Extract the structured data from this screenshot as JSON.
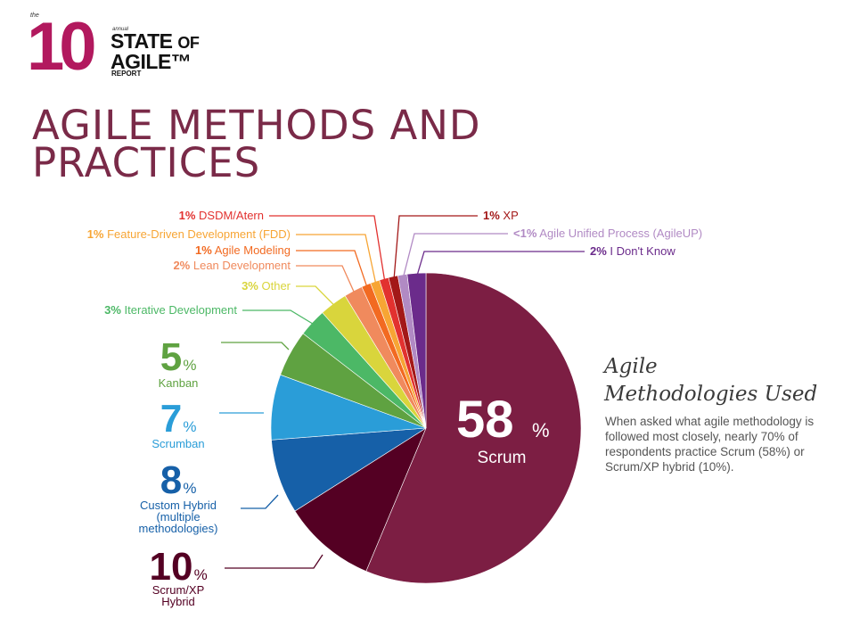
{
  "logo": {
    "the": "the",
    "number": "10",
    "annual": "annual",
    "line1": "STATE",
    "of": "OF",
    "line2": "AGILE™",
    "report": "REPORT"
  },
  "page_title": "AGILE METHODS AND PRACTICES",
  "side_panel": {
    "title_line1": "Agile",
    "title_line2": "Methodologies Used",
    "description": "When asked what agile methodology is followed most closely, nearly 70% of respondents practice Scrum (58%) or Scrum/XP hybrid (10%)."
  },
  "chart_data": {
    "type": "pie",
    "title": "",
    "unit": "%",
    "slices": [
      {
        "label": "Scrum",
        "value": 58,
        "display": "58",
        "color": "#7c1e43"
      },
      {
        "label": "Scrum/XP Hybrid",
        "value": 10,
        "display": "10",
        "color": "#540023"
      },
      {
        "label": "Custom Hybrid (multiple methodologies)",
        "value": 8,
        "display": "8",
        "color": "#1660a8"
      },
      {
        "label": "Scrumban",
        "value": 7,
        "display": "7",
        "color": "#2a9dd8"
      },
      {
        "label": "Kanban",
        "value": 5,
        "display": "5",
        "color": "#5fa241"
      },
      {
        "label": "Iterative Development",
        "value": 3,
        "display": "3%",
        "color": "#4cb866"
      },
      {
        "label": "Other",
        "value": 3,
        "display": "3%",
        "color": "#d9d53c"
      },
      {
        "label": "Lean Development",
        "value": 2,
        "display": "2%",
        "color": "#f08a5d"
      },
      {
        "label": "Agile Modeling",
        "value": 1,
        "display": "1%",
        "color": "#f26a21"
      },
      {
        "label": "Feature-Driven Development (FDD)",
        "value": 1,
        "display": "1%",
        "color": "#f7a534"
      },
      {
        "label": "DSDM/Atern",
        "value": 1,
        "display": "1%",
        "color": "#e2312f"
      },
      {
        "label": "XP",
        "value": 1,
        "display": "1%",
        "color": "#a31818"
      },
      {
        "label": "Agile Unified Process (AgileUP)",
        "value": 1,
        "display": "<1%",
        "color": "#b18ac4"
      },
      {
        "label": "I Don't Know",
        "value": 2,
        "display": "2%",
        "color": "#6b2b8b"
      }
    ]
  }
}
